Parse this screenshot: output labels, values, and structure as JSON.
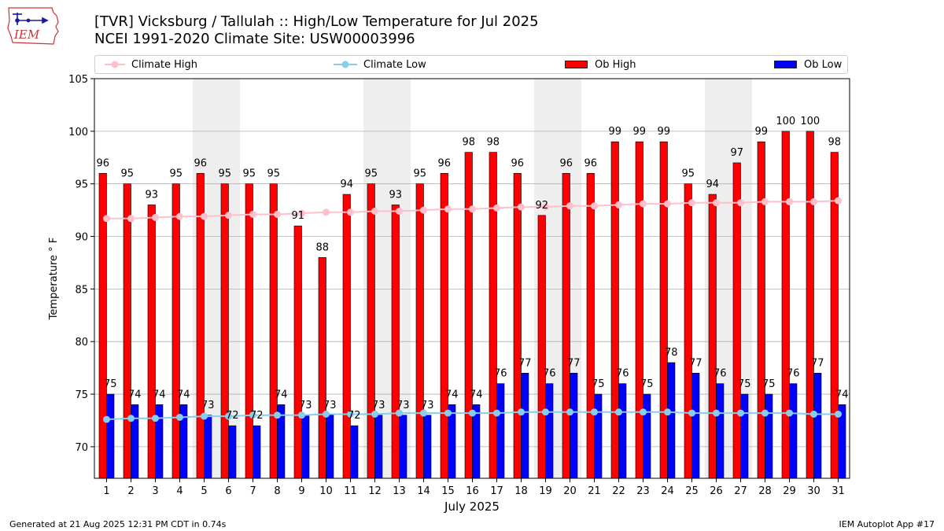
{
  "header": {
    "logo_text": "IEM",
    "title_line1": "[TVR] Vicksburg / Tallulah :: High/Low Temperature for Jul 2025",
    "title_line2": "NCEI 1991-2020 Climate Site: USW00003996"
  },
  "legend": [
    {
      "label": "Climate High",
      "kind": "line",
      "color": "#ffc0cb"
    },
    {
      "label": "Climate Low",
      "kind": "line",
      "color": "#87ceeb"
    },
    {
      "label": "Ob High",
      "kind": "bar",
      "color": "#ff0000"
    },
    {
      "label": "Ob Low",
      "kind": "bar",
      "color": "#0000ff"
    }
  ],
  "footer": {
    "left": "Generated at 21 Aug 2025 12:31 PM CDT in 0.74s",
    "right": "IEM Autoplot App #17"
  },
  "chart_data": {
    "type": "bar",
    "xlabel": "July 2025",
    "ylabel": "Temperature ° F",
    "ylim": [
      67,
      105
    ],
    "yticks": [
      70,
      75,
      80,
      85,
      90,
      95,
      100,
      105
    ],
    "grid": true,
    "legend_position": "top",
    "categories": [
      1,
      2,
      3,
      4,
      5,
      6,
      7,
      8,
      9,
      10,
      11,
      12,
      13,
      14,
      15,
      16,
      17,
      18,
      19,
      20,
      21,
      22,
      23,
      24,
      25,
      26,
      27,
      28,
      29,
      30,
      31
    ],
    "weekend_days": [
      5,
      6,
      12,
      13,
      19,
      20,
      26,
      27
    ],
    "series": [
      {
        "name": "Ob High",
        "type": "bar",
        "color": "#ff0000",
        "values": [
          96,
          95,
          93,
          95,
          96,
          95,
          95,
          95,
          91,
          88,
          94,
          95,
          93,
          95,
          96,
          98,
          98,
          96,
          92,
          96,
          96,
          99,
          99,
          99,
          95,
          94,
          97,
          99,
          100,
          100,
          98
        ]
      },
      {
        "name": "Ob Low",
        "type": "bar",
        "color": "#0000ff",
        "values": [
          75,
          74,
          74,
          74,
          73,
          72,
          72,
          74,
          73,
          73,
          72,
          73,
          73,
          73,
          74,
          74,
          76,
          77,
          76,
          77,
          75,
          76,
          75,
          78,
          77,
          76,
          75,
          75,
          76,
          77,
          74
        ]
      },
      {
        "name": "Climate High",
        "type": "line",
        "color": "#ffc0cb",
        "values": [
          91.7,
          91.7,
          91.8,
          91.9,
          91.9,
          92.0,
          92.1,
          92.1,
          92.2,
          92.3,
          92.3,
          92.4,
          92.4,
          92.5,
          92.6,
          92.6,
          92.7,
          92.8,
          92.8,
          92.9,
          92.9,
          93.0,
          93.1,
          93.1,
          93.2,
          93.2,
          93.2,
          93.3,
          93.3,
          93.3,
          93.4
        ]
      },
      {
        "name": "Climate Low",
        "type": "line",
        "color": "#87ceeb",
        "values": [
          72.6,
          72.7,
          72.7,
          72.8,
          72.9,
          72.9,
          73.0,
          73.0,
          73.0,
          73.1,
          73.1,
          73.1,
          73.2,
          73.2,
          73.2,
          73.2,
          73.2,
          73.3,
          73.3,
          73.3,
          73.3,
          73.3,
          73.3,
          73.3,
          73.2,
          73.2,
          73.2,
          73.2,
          73.2,
          73.1,
          73.1
        ]
      }
    ]
  }
}
